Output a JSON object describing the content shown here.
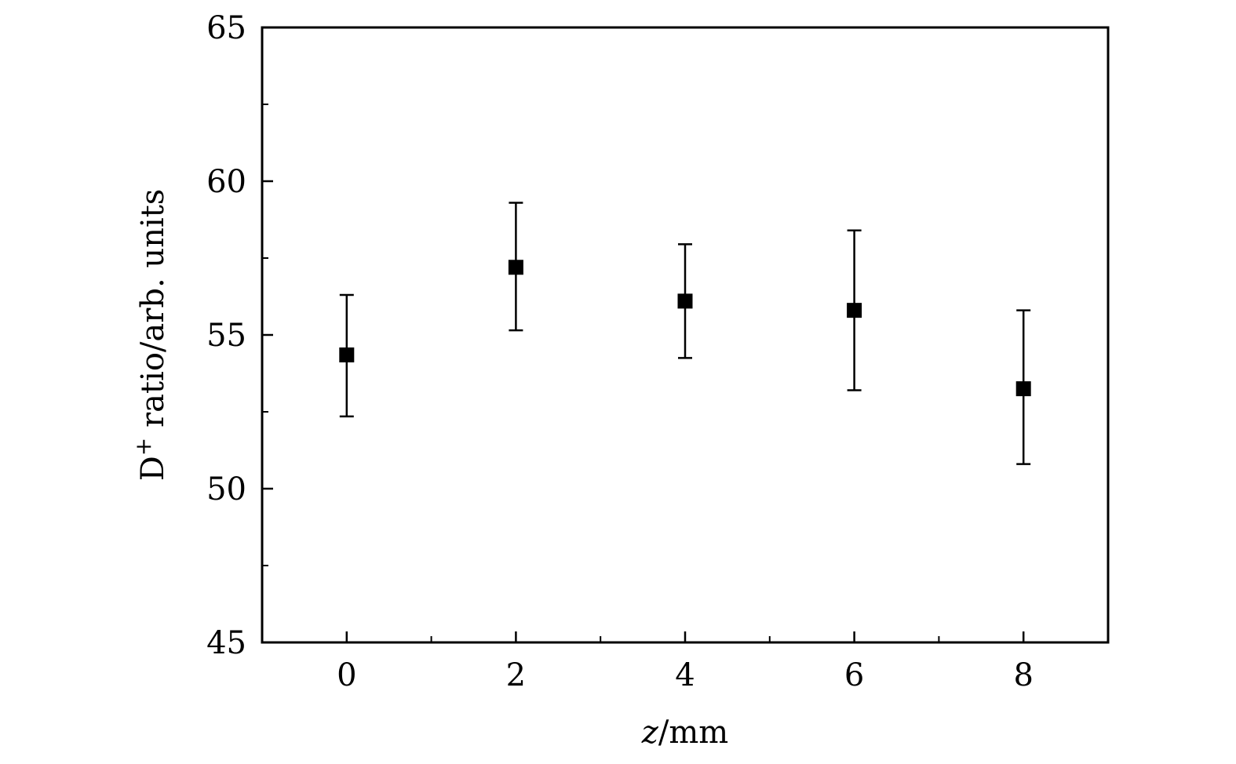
{
  "chart_data": {
    "type": "scatter",
    "xlabel": {
      "var": "z",
      "unit": "/mm"
    },
    "ylabel": {
      "species": "D",
      "superscript": "+",
      "rest": " ratio/arb. units"
    },
    "xlim": [
      -1,
      9
    ],
    "ylim": [
      45,
      65
    ],
    "x_ticks_major": [
      0,
      2,
      4,
      6,
      8
    ],
    "x_tick_labels": [
      "0",
      "2",
      "4",
      "6",
      "8"
    ],
    "x_ticks_minor": [
      1,
      3,
      5,
      7
    ],
    "y_ticks_major": [
      45,
      50,
      55,
      60,
      65
    ],
    "y_tick_labels": [
      "45",
      "50",
      "55",
      "60",
      "65"
    ],
    "y_ticks_minor": [
      47.5,
      52.5,
      57.5,
      62.5
    ],
    "grid": false,
    "marker": "filled-square",
    "colors": {
      "marker": "#000000",
      "axis": "#000000",
      "background": "#ffffff"
    },
    "series": [
      {
        "x": [
          0,
          2,
          4,
          6,
          8
        ],
        "y": [
          54.35,
          57.2,
          56.1,
          55.8,
          53.25
        ],
        "y_err_low": [
          52.35,
          55.15,
          54.25,
          53.2,
          50.8
        ],
        "y_err_high": [
          56.3,
          59.3,
          57.95,
          58.4,
          55.8
        ]
      }
    ]
  }
}
